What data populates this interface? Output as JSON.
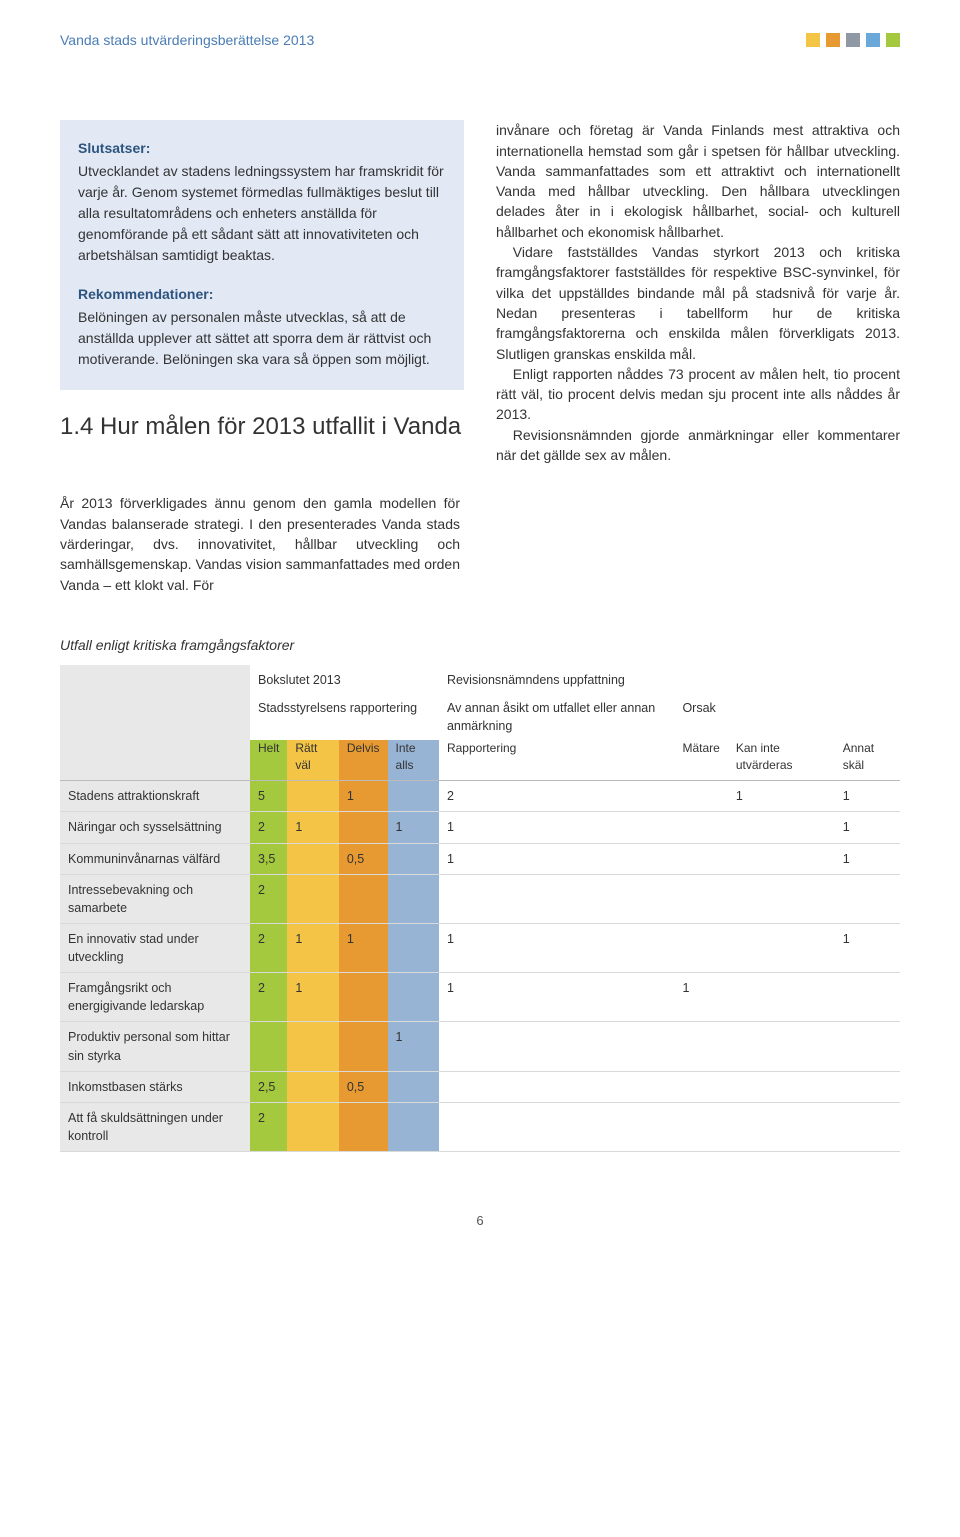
{
  "header": {
    "title": "Vanda stads utvärderingsberättelse 2013",
    "squares": [
      "#f3c445",
      "#e79a32",
      "#8f99a6",
      "#6aa8d9",
      "#a4c93e"
    ]
  },
  "box1": {
    "title": "Slutsatser:",
    "text": "Utvecklandet av stadens ledningssystem har framskridit för varje år. Genom systemet förmedlas fullmäktiges beslut till alla resultatområdens och enheters anställda för genomförande på ett sådant sätt att innovativiteten och arbetshälsan samtidigt beaktas."
  },
  "box2": {
    "title": "Rekommendationer:",
    "text": "Belöningen av personalen måste utvecklas, så att de anställda upplever att sättet att sporra dem är rättvist och motiverande. Belöningen ska vara så öppen som möjligt."
  },
  "section": {
    "number": "1.4",
    "title": "Hur målen för 2013 utfallit i Vanda"
  },
  "bridge": "År 2013 förverkligades ännu genom den gamla modellen för Vandas balanserade strategi. I den presenterades Vanda stads värderingar, dvs. innovativitet, hållbar utveckling och samhällsgemenskap. Vandas vision sammanfattades med orden Vanda – ett klokt val. För",
  "right_paragraphs": [
    "invånare och företag är Vanda Finlands mest attraktiva och internationella hemstad som går i spetsen för hållbar utveckling. Vanda sammanfattades som ett attraktivt och internationellt Vanda med hållbar utveckling. Den hållbara utvecklingen delades åter in i ekologisk hållbarhet, social- och kulturell hållbarhet och ekonomisk hållbarhet.",
    "Vidare fastställdes Vandas styrkort 2013 och kritiska framgångsfaktorer fastställdes för respektive BSC-synvinkel, för vilka det uppställdes bindande mål på stadsnivå för varje år. Nedan presenteras i tabellform hur de kritiska framgångsfaktorerna och enskilda målen förverkligats 2013. Slutligen granskas enskilda mål.",
    "Enligt rapporten nåddes 73 procent av målen helt, tio procent rätt väl, tio procent delvis medan sju procent inte alls nåddes år 2013.",
    "Revisionsnämnden gjorde anmärkningar eller kommentarer när det gällde sex av målen."
  ],
  "table": {
    "caption": "Utfall enligt kritiska framgångsfaktorer",
    "top_headers": {
      "bokslutet": "Bokslutet 2013",
      "revision": "Revisionsnämndens uppfattning",
      "stadsstyrelsens": "Stadsstyrelsens rapportering",
      "av_annan": "Av annan åsikt om utfallet eller annan anmärkning",
      "orsak": "Orsak"
    },
    "col_headers": {
      "helt": "Helt",
      "ratt": "Rätt väl",
      "delvis": "Delvis",
      "inte_alls": "Inte alls",
      "rapportering": "Rapportering",
      "matare": "Mätare",
      "kan_inte": "Kan inte utvärderas",
      "annat": "Annat skäl"
    },
    "rows": [
      {
        "label": "Stadens attraktionskraft",
        "helt": "5",
        "ratt": "",
        "delvis": "1",
        "inte": "",
        "rapport": "2",
        "matare": "",
        "kaninte": "1",
        "annat": "1"
      },
      {
        "label": "Näringar och sysselsättning",
        "helt": "2",
        "ratt": "1",
        "delvis": "",
        "inte": "1",
        "rapport": "1",
        "matare": "",
        "kaninte": "",
        "annat": "1"
      },
      {
        "label": "Kommuninvånarnas välfärd",
        "helt": "3,5",
        "ratt": "",
        "delvis": "0,5",
        "inte": "",
        "rapport": "1",
        "matare": "",
        "kaninte": "",
        "annat": "1"
      },
      {
        "label": "Intressebevakning och samarbete",
        "helt": "2",
        "ratt": "",
        "delvis": "",
        "inte": "",
        "rapport": "",
        "matare": "",
        "kaninte": "",
        "annat": ""
      },
      {
        "label": "En innovativ stad under utveckling",
        "helt": "2",
        "ratt": "1",
        "delvis": "1",
        "inte": "",
        "rapport": "1",
        "matare": "",
        "kaninte": "",
        "annat": "1"
      },
      {
        "label": "Framgångsrikt och energigivande ledarskap",
        "helt": "2",
        "ratt": "1",
        "delvis": "",
        "inte": "",
        "rapport": "1",
        "matare": "1",
        "kaninte": "",
        "annat": ""
      },
      {
        "label": "Produktiv personal som hittar sin styrka",
        "helt": "",
        "ratt": "",
        "delvis": "",
        "inte": "1",
        "rapport": "",
        "matare": "",
        "kaninte": "",
        "annat": ""
      },
      {
        "label": "Inkomstbasen stärks",
        "helt": "2,5",
        "ratt": "",
        "delvis": "0,5",
        "inte": "",
        "rapport": "",
        "matare": "",
        "kaninte": "",
        "annat": ""
      },
      {
        "label": "Att få skuldsättningen under kontroll",
        "helt": "2",
        "ratt": "",
        "delvis": "",
        "inte": "",
        "rapport": "",
        "matare": "",
        "kaninte": "",
        "annat": ""
      }
    ]
  },
  "page_number": "6"
}
